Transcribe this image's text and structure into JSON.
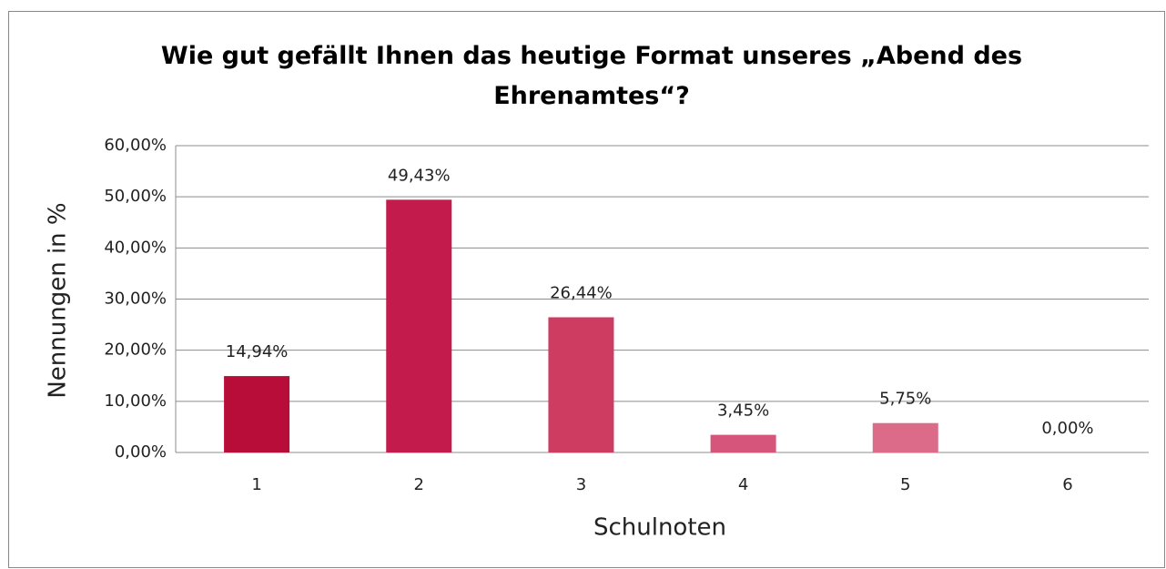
{
  "chart_data": {
    "type": "bar",
    "title": "Wie gut gefällt Ihnen das heutige Format unseres „Abend des Ehrenamtes“?",
    "xlabel": "Schulnoten",
    "ylabel": "Nennungen in %",
    "categories": [
      "1",
      "2",
      "3",
      "4",
      "5",
      "6"
    ],
    "values": [
      14.94,
      49.43,
      26.44,
      3.45,
      5.75,
      0
    ],
    "value_labels": [
      "14,94%",
      "49,43%",
      "26,44%",
      "3,45%",
      "5,75%",
      "0,00%"
    ],
    "colors": [
      "#b80c39",
      "#c31b4b",
      "#cf3c62",
      "#d6557a",
      "#dc6b89",
      "#e287a0"
    ],
    "ylim": [
      0,
      60
    ],
    "yticks": [
      {
        "value": 0,
        "label": "0,00%"
      },
      {
        "value": 10,
        "label": "10,00%"
      },
      {
        "value": 20,
        "label": "20,00%"
      },
      {
        "value": 30,
        "label": "30,00%"
      },
      {
        "value": 40,
        "label": "40,00%"
      },
      {
        "value": 50,
        "label": "50,00%"
      },
      {
        "value": 60,
        "label": "60,00%"
      }
    ],
    "grid": true
  }
}
